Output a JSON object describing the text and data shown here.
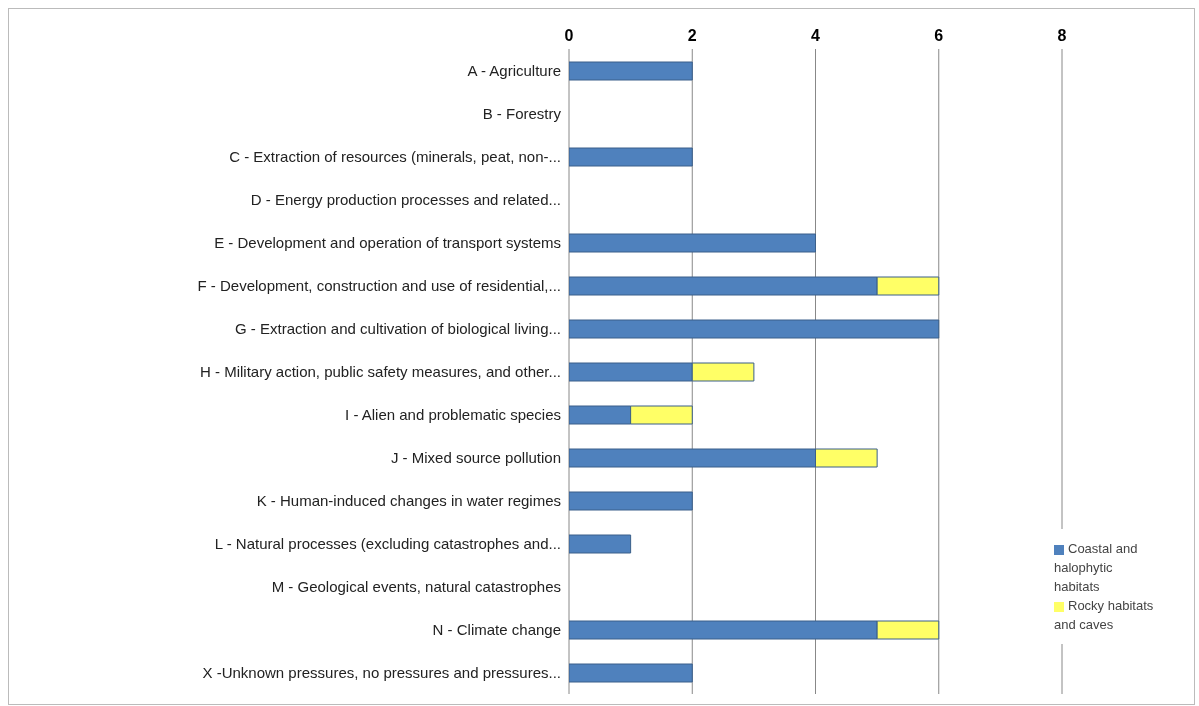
{
  "chart_data": {
    "type": "bar",
    "orientation": "horizontal",
    "stacked": true,
    "categories": [
      "A - Agriculture",
      "B - Forestry",
      "C - Extraction of resources (minerals, peat, non-...",
      "D - Energy production processes and related...",
      "E - Development and operation of transport systems",
      "F - Development, construction and use of residential,...",
      "G - Extraction and cultivation of biological living...",
      "H - Military action, public safety measures, and other...",
      "I - Alien and problematic species",
      "J - Mixed source pollution",
      "K - Human-induced changes in water regimes",
      "L - Natural processes (excluding catastrophes and...",
      "M - Geological events, natural catastrophes",
      "N - Climate change",
      "X -Unknown pressures, no pressures and pressures..."
    ],
    "series": [
      {
        "name": "Coastal and halophytic habitats",
        "color": "#4f81bd",
        "values": [
          2,
          0,
          2,
          0,
          4,
          5,
          6,
          2,
          1,
          4,
          2,
          1,
          0,
          5,
          2
        ]
      },
      {
        "name": "Rocky habitats and caves",
        "color": "#ffff66",
        "values": [
          0,
          0,
          0,
          0,
          0,
          1,
          0,
          1,
          1,
          1,
          0,
          0,
          0,
          1,
          0
        ]
      }
    ],
    "xlim": [
      0,
      8
    ],
    "xticks": [
      0,
      2,
      4,
      6,
      8
    ],
    "grid": "x",
    "legend": "bottom right"
  }
}
